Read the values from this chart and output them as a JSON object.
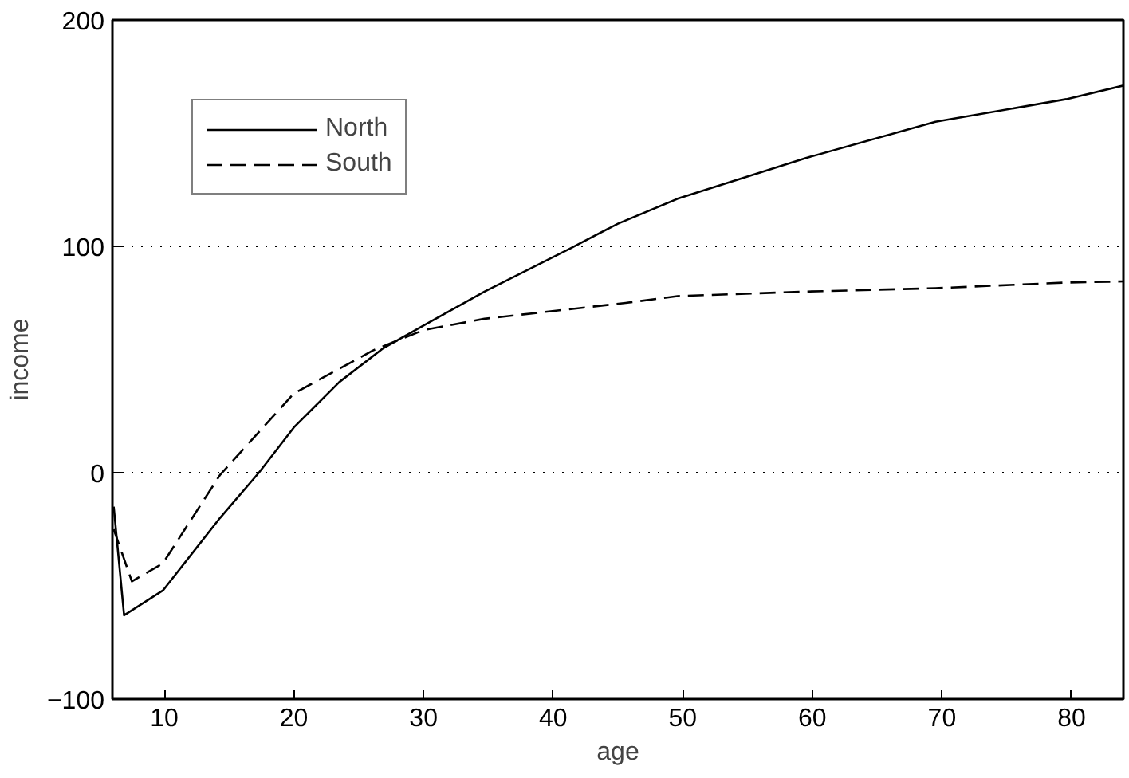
{
  "chart_data": {
    "type": "line",
    "xlabel": "age",
    "ylabel": "income",
    "xlim": [
      6,
      84
    ],
    "ylim": [
      -100,
      200
    ],
    "xticks": [
      10,
      20,
      30,
      40,
      50,
      60,
      70,
      80
    ],
    "yticks": [
      -100,
      0,
      100,
      200
    ],
    "grid": "y",
    "legend": "top left",
    "marker": "none",
    "series": [
      {
        "name": "North",
        "color": "#000000",
        "line_style": "solid",
        "x": [
          6.1,
          6.9,
          9.9,
          14.3,
          17.3,
          20,
          23.5,
          26.9,
          30,
          34.7,
          41.3,
          45,
          49.6,
          59.5,
          69.5,
          79.6,
          84
        ],
        "values": [
          -15,
          -63,
          -52,
          -20,
          0,
          20,
          40,
          55,
          65,
          80,
          99,
          110,
          121,
          139,
          155,
          165,
          171
        ]
      },
      {
        "name": "South",
        "color": "#000000",
        "line_style": "dashed",
        "x": [
          6.1,
          7.5,
          9.9,
          14.3,
          20,
          26.1,
          30,
          34.7,
          45.6,
          49.6,
          59.5,
          69.5,
          79.6,
          84
        ],
        "values": [
          -25,
          -48,
          -40,
          -1,
          35,
          54,
          63,
          68,
          75,
          78,
          80,
          81.5,
          84,
          84.5
        ]
      }
    ]
  }
}
